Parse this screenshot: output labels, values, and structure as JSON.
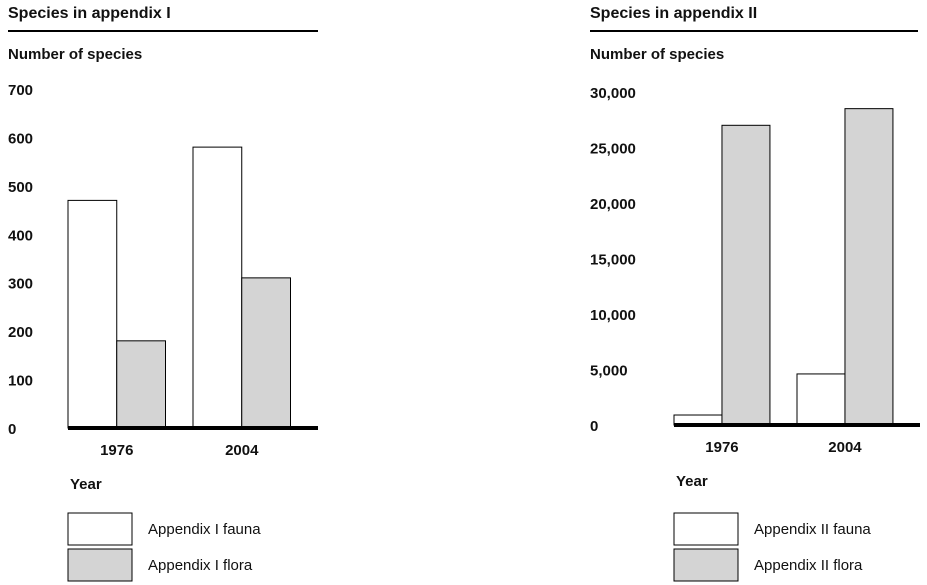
{
  "chart_data": [
    {
      "type": "bar",
      "title": "Species in appendix I",
      "y_label": "Number of species",
      "x_label": "Year",
      "categories": [
        "1976",
        "2004"
      ],
      "series": [
        {
          "name": "Appendix I fauna",
          "color": "#ffffff",
          "values": [
            470,
            580
          ]
        },
        {
          "name": "Appendix I flora",
          "color": "#d4d4d4",
          "values": [
            180,
            310
          ]
        }
      ],
      "ylim": [
        0,
        700
      ],
      "yticks": [
        0,
        100,
        200,
        300,
        400,
        500,
        600,
        700
      ],
      "grid": false
    },
    {
      "type": "bar",
      "title": "Species in appendix II",
      "y_label": "Number of species",
      "x_label": "Year",
      "categories": [
        "1976",
        "2004"
      ],
      "series": [
        {
          "name": "Appendix II fauna",
          "color": "#ffffff",
          "values": [
            900,
            4600
          ]
        },
        {
          "name": "Appendix II flora",
          "color": "#d4d4d4",
          "values": [
            27000,
            28500
          ]
        }
      ],
      "ylim": [
        0,
        30000
      ],
      "yticks": [
        0,
        {
          "value": 5000,
          "label": "5,000"
        },
        {
          "value": 10000,
          "label": "10,000"
        },
        {
          "value": 15000,
          "label": "15,000"
        },
        {
          "value": 20000,
          "label": "20,000"
        },
        {
          "value": 25000,
          "label": "25,000"
        },
        {
          "value": 30000,
          "label": "30,000"
        }
      ],
      "grid": false
    }
  ]
}
